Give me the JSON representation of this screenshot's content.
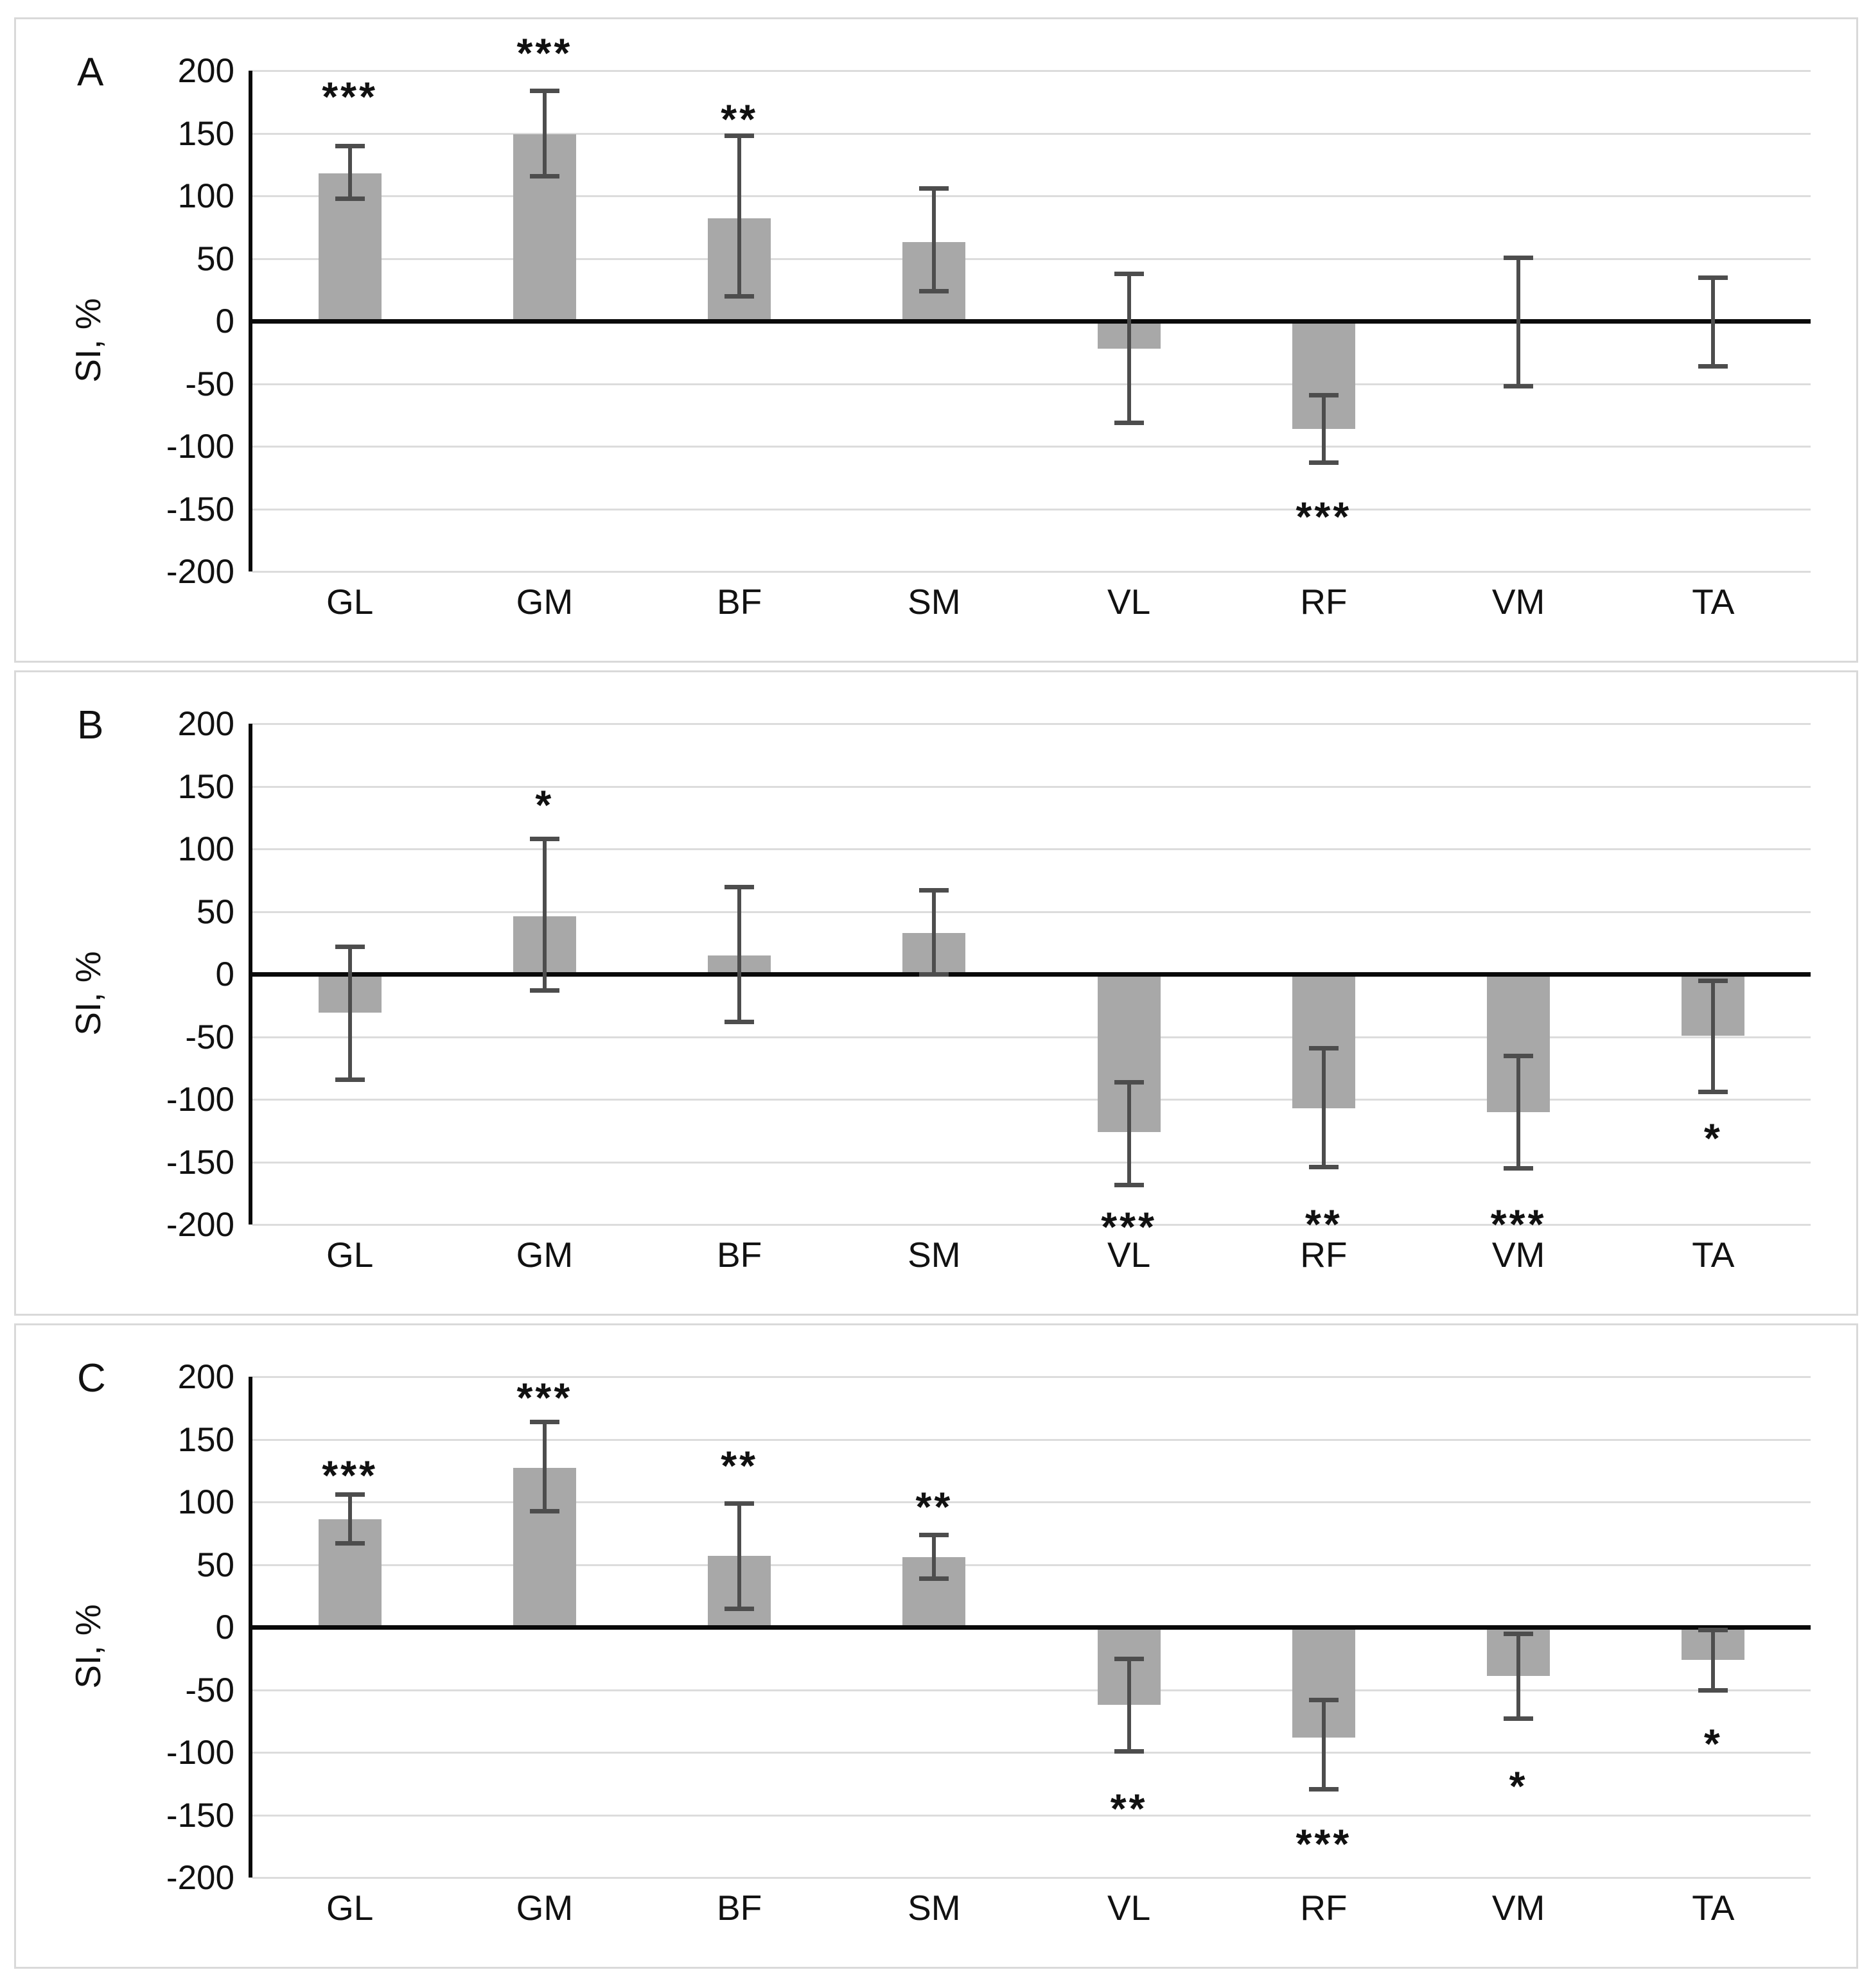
{
  "figure": {
    "y_axis_title": "SI, %",
    "y_ticks": [
      200,
      150,
      100,
      50,
      0,
      -50,
      -100,
      -150,
      -200
    ],
    "colors": {
      "bar": "#a8a8a8",
      "error_bar": "#4d4d4d",
      "gridline": "#dcdcdc",
      "axis": "#0a0a0a",
      "panel_border": "#d9d9d9",
      "text": "#111111",
      "background": "#ffffff"
    }
  },
  "chart_data": {
    "type": "bar",
    "categories": [
      "GL",
      "GM",
      "BF",
      "SM",
      "VL",
      "RF",
      "VM",
      "TA"
    ],
    "ylabel": "SI, %",
    "ylim": [
      -200,
      200
    ],
    "grid": "horizontal, every 50",
    "legend": "none",
    "panels": [
      {
        "label": "A",
        "series": [
          {
            "category": "GL",
            "value": 118,
            "err_low": 98,
            "err_high": 140,
            "sig": "***",
            "sig_y": 185
          },
          {
            "category": "GM",
            "value": 149,
            "err_low": 116,
            "err_high": 184,
            "sig": "***",
            "sig_y": 220
          },
          {
            "category": "BF",
            "value": 82,
            "err_low": 20,
            "err_high": 148,
            "sig": "**",
            "sig_y": 167
          },
          {
            "category": "SM",
            "value": 63,
            "err_low": 24,
            "err_high": 106,
            "sig": null,
            "sig_y": null
          },
          {
            "category": "VL",
            "value": -22,
            "err_low": -81,
            "err_high": 38,
            "sig": null,
            "sig_y": null
          },
          {
            "category": "RF",
            "value": -86,
            "err_low": -113,
            "err_high": -59,
            "sig": "***",
            "sig_y": -150
          },
          {
            "category": "VM",
            "value": 0,
            "err_low": -52,
            "err_high": 51,
            "sig": null,
            "sig_y": null
          },
          {
            "category": "TA",
            "value": 0,
            "err_low": -36,
            "err_high": 35,
            "sig": null,
            "sig_y": null
          }
        ]
      },
      {
        "label": "B",
        "series": [
          {
            "category": "GL",
            "value": -31,
            "err_low": -84,
            "err_high": 22,
            "sig": null,
            "sig_y": null
          },
          {
            "category": "GM",
            "value": 46,
            "err_low": -13,
            "err_high": 108,
            "sig": "*",
            "sig_y": 141
          },
          {
            "category": "BF",
            "value": 15,
            "err_low": -38,
            "err_high": 70,
            "sig": null,
            "sig_y": null
          },
          {
            "category": "SM",
            "value": 33,
            "err_low": 0,
            "err_high": 67,
            "sig": null,
            "sig_y": null
          },
          {
            "category": "VL",
            "value": -126,
            "err_low": -168,
            "err_high": -86,
            "sig": "***",
            "sig_y": -196
          },
          {
            "category": "RF",
            "value": -107,
            "err_low": -154,
            "err_high": -59,
            "sig": "**",
            "sig_y": -194
          },
          {
            "category": "VM",
            "value": -110,
            "err_low": -155,
            "err_high": -65,
            "sig": "***",
            "sig_y": -194
          },
          {
            "category": "TA",
            "value": -49,
            "err_low": -94,
            "err_high": -5,
            "sig": "*",
            "sig_y": -125
          }
        ]
      },
      {
        "label": "C",
        "series": [
          {
            "category": "GL",
            "value": 86,
            "err_low": 67,
            "err_high": 106,
            "sig": "***",
            "sig_y": 127
          },
          {
            "category": "GM",
            "value": 127,
            "err_low": 93,
            "err_high": 164,
            "sig": "***",
            "sig_y": 189
          },
          {
            "category": "BF",
            "value": 57,
            "err_low": 15,
            "err_high": 99,
            "sig": "**",
            "sig_y": 135
          },
          {
            "category": "SM",
            "value": 56,
            "err_low": 39,
            "err_high": 74,
            "sig": "**",
            "sig_y": 102
          },
          {
            "category": "VL",
            "value": -62,
            "err_low": -99,
            "err_high": -25,
            "sig": "**",
            "sig_y": -139
          },
          {
            "category": "RF",
            "value": -88,
            "err_low": -129,
            "err_high": -58,
            "sig": "***",
            "sig_y": -167
          },
          {
            "category": "VM",
            "value": -39,
            "err_low": -73,
            "err_high": -5,
            "sig": "*",
            "sig_y": -121
          },
          {
            "category": "TA",
            "value": -26,
            "err_low": -50,
            "err_high": -2,
            "sig": "*",
            "sig_y": -87
          }
        ]
      }
    ]
  }
}
